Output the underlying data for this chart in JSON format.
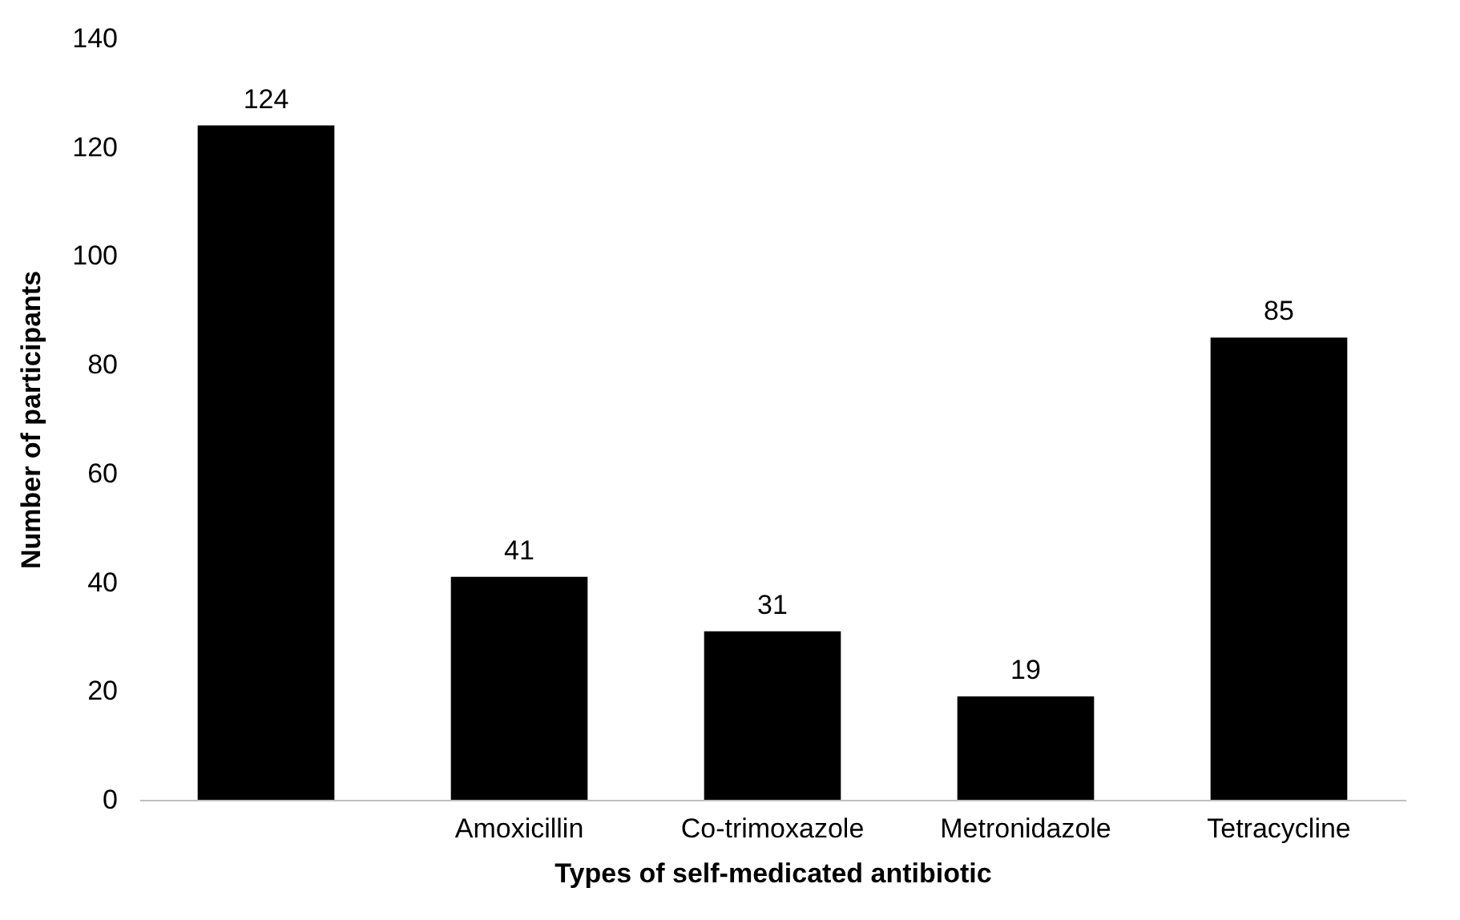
{
  "chart_data": {
    "type": "bar",
    "xlabel": "Types of self-medicated antibiotic",
    "ylabel": "Number of participants",
    "categories": [
      null,
      "Amoxicillin",
      "Co-trimoxazole",
      "Metronidazole",
      "Tetracycline"
    ],
    "values": [
      124,
      41,
      31,
      19,
      85
    ],
    "color": "#000000",
    "ylim": [
      0,
      140
    ],
    "yticks": [
      0,
      20,
      40,
      60,
      80,
      100,
      120,
      140
    ],
    "data_labels": true,
    "grid": false
  }
}
